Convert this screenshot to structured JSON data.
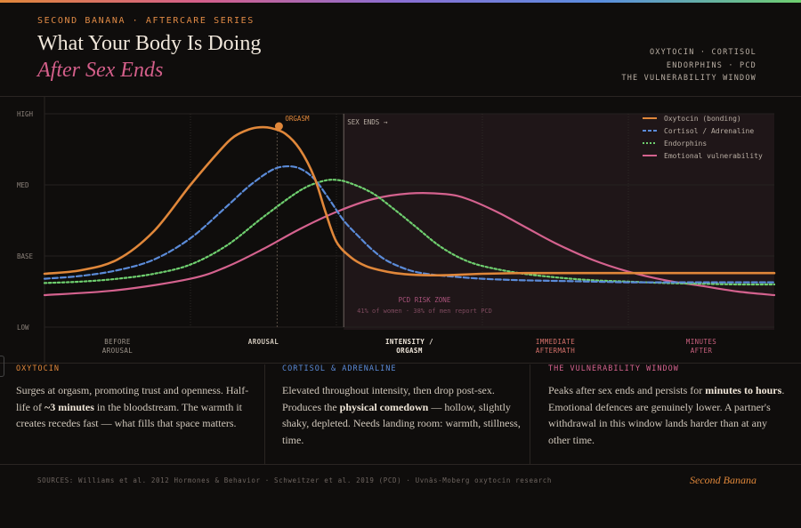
{
  "header": {
    "series_tag": "SECOND BANANA · AFTERCARE SERIES",
    "title_line1": "What Your Body Is Doing",
    "title_line2": "After Sex Ends",
    "topics": [
      "OXYTOCIN · CORTISOL",
      "ENDORPHINS · PCD",
      "THE VULNERABILITY WINDOW"
    ]
  },
  "chart_data": {
    "type": "line",
    "y_levels": [
      "LOW",
      "BASE",
      "MED",
      "HIGH"
    ],
    "phases": [
      {
        "label": [
          "BEFORE",
          "AROUSAL"
        ],
        "color": "#9c938a"
      },
      {
        "label": [
          "AROUSAL"
        ],
        "color": "#cfc6ba"
      },
      {
        "label": [
          "INTENSITY /",
          "ORGASM"
        ],
        "color": "#efe6da"
      },
      {
        "label": [
          "IMMEDIATE",
          "AFTERMATH"
        ],
        "color": "#d4706a"
      },
      {
        "label": [
          "MINUTES",
          "AFTER"
        ],
        "color": "#c8607e"
      }
    ],
    "xlim": [
      0,
      100
    ],
    "ylim": [
      0,
      3
    ],
    "series": [
      {
        "name": "Oxytocin (bonding)",
        "color": "#e0873a",
        "dash": "none",
        "x": [
          0,
          5,
          10,
          15,
          20,
          24,
          26,
          28,
          29.5,
          31,
          33,
          35,
          37,
          38.5,
          40,
          42,
          44,
          46,
          48,
          50,
          52,
          55,
          60,
          66,
          72,
          78,
          84,
          90,
          96,
          100
        ],
        "y": [
          0.75,
          0.8,
          0.95,
          1.35,
          2.0,
          2.48,
          2.68,
          2.78,
          2.81,
          2.8,
          2.72,
          2.5,
          2.1,
          1.62,
          1.2,
          0.98,
          0.86,
          0.8,
          0.76,
          0.74,
          0.73,
          0.73,
          0.75,
          0.76,
          0.76,
          0.76,
          0.76,
          0.76,
          0.76,
          0.76
        ]
      },
      {
        "name": "Cortisol / Adrenaline",
        "color": "#5b8bd8",
        "dash": "6 3",
        "x": [
          0,
          5,
          10,
          15,
          20,
          25,
          28,
          31,
          33,
          35,
          37,
          39,
          41,
          43,
          45,
          47,
          50,
          53,
          56,
          60,
          65,
          70,
          75,
          80,
          85,
          90,
          95,
          100
        ],
        "y": [
          0.68,
          0.72,
          0.8,
          0.95,
          1.25,
          1.7,
          1.98,
          2.2,
          2.26,
          2.23,
          2.08,
          1.8,
          1.5,
          1.28,
          1.08,
          0.93,
          0.8,
          0.74,
          0.71,
          0.68,
          0.66,
          0.65,
          0.64,
          0.63,
          0.63,
          0.63,
          0.63,
          0.63
        ]
      },
      {
        "name": "Endorphins",
        "color": "#6fcf6f",
        "dash": "2.5 2.5",
        "x": [
          0,
          5,
          10,
          15,
          20,
          25,
          30,
          35,
          38,
          40,
          42,
          45,
          48,
          51,
          54,
          57,
          60,
          65,
          70,
          75,
          80,
          85,
          90,
          95,
          100
        ],
        "y": [
          0.62,
          0.64,
          0.68,
          0.75,
          0.88,
          1.15,
          1.55,
          1.92,
          2.05,
          2.07,
          2.02,
          1.88,
          1.65,
          1.4,
          1.15,
          0.97,
          0.86,
          0.76,
          0.7,
          0.66,
          0.64,
          0.62,
          0.61,
          0.6,
          0.6
        ]
      },
      {
        "name": "Emotional vulnerability",
        "color": "#d4628e",
        "dash": "none",
        "x": [
          0,
          10,
          20,
          25,
          30,
          35,
          40,
          45,
          50,
          55,
          58,
          62,
          66,
          70,
          75,
          80,
          85,
          90,
          95,
          100
        ],
        "y": [
          0.45,
          0.52,
          0.68,
          0.85,
          1.1,
          1.38,
          1.62,
          1.8,
          1.88,
          1.87,
          1.8,
          1.62,
          1.4,
          1.18,
          0.95,
          0.78,
          0.66,
          0.58,
          0.5,
          0.45
        ]
      }
    ],
    "annotations": {
      "orgasm_label": "ORGASM",
      "orgasm_x": 32,
      "orgasm_y": 2.8,
      "sex_ends_label": "SEX ENDS →",
      "sex_ends_x": 41,
      "pcd_title": "PCD RISK ZONE",
      "pcd_sub": "41% of women · 38% of men report PCD"
    },
    "legend_position": "top-right",
    "grid": true
  },
  "panels": [
    {
      "heading": "OXYTOCIN",
      "color": "#e0873a",
      "parts": [
        [
          "Surges at orgasm, promoting trust and openness. Half-life of ",
          false
        ],
        [
          "~3 minutes",
          true
        ],
        [
          " in the bloodstream. The warmth it creates recedes fast — what fills that space matters.",
          false
        ]
      ]
    },
    {
      "heading": "CORTISOL & ADRENALINE",
      "color": "#5b8bd8",
      "parts": [
        [
          "Elevated throughout intensity, then drop post-sex. Produces the ",
          false
        ],
        [
          "physical comedown",
          true
        ],
        [
          " — hollow, slightly shaky, depleted. Needs landing room: warmth, stillness, time.",
          false
        ]
      ]
    },
    {
      "heading": "THE VULNERABILITY WINDOW",
      "color": "#d4628e",
      "parts": [
        [
          "Peaks after sex ends and persists for ",
          false
        ],
        [
          "minutes to hours",
          true
        ],
        [
          ". Emotional defences are genuinely lower. A partner's withdrawal in this window lands harder than at any other time.",
          false
        ]
      ]
    }
  ],
  "footer": {
    "sources": "SOURCES: Williams et al. 2012 Hormones & Behavior · Schweitzer et al. 2019 (PCD) · Uvnäs-Moberg oxytocin research",
    "brand": "Second Banana"
  }
}
